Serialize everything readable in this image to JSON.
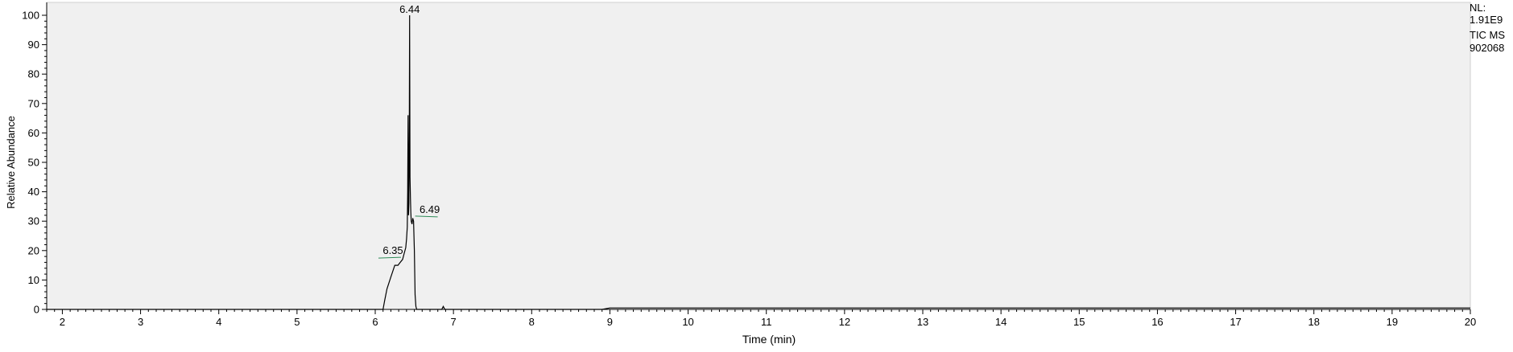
{
  "chart_data": {
    "type": "line",
    "title": "",
    "xlabel": "Time (min)",
    "ylabel": "Relative Abundance",
    "xlim": [
      1.8,
      20
    ],
    "ylim": [
      0,
      100
    ],
    "x_ticks": [
      2,
      3,
      4,
      5,
      6,
      7,
      8,
      9,
      10,
      11,
      12,
      13,
      14,
      15,
      16,
      17,
      18,
      19,
      20
    ],
    "y_ticks": [
      0,
      10,
      20,
      30,
      40,
      50,
      60,
      70,
      80,
      90,
      100
    ],
    "grid": false,
    "plot_background": "#f0f0f0",
    "line_color": "#000000",
    "peak_marker_color": "#2e8b57",
    "series": [
      {
        "x": [
          1.8,
          6.1,
          6.12,
          6.15,
          6.2,
          6.25,
          6.29,
          6.32,
          6.35,
          6.37,
          6.39,
          6.4,
          6.41,
          6.415,
          6.42,
          6.425,
          6.43,
          6.435,
          6.44,
          6.445,
          6.45,
          6.455,
          6.46,
          6.47,
          6.48,
          6.49,
          6.5,
          6.51,
          6.52,
          6.53,
          6.55,
          6.85,
          6.87,
          6.89,
          8.9,
          9.0,
          20.0
        ],
        "y": [
          0,
          0,
          3,
          7,
          11,
          15,
          15,
          16,
          17,
          19,
          21,
          24,
          28,
          40,
          66,
          32,
          36,
          60,
          100,
          45,
          38,
          33,
          30,
          29,
          31,
          30,
          20,
          5,
          1,
          0,
          0,
          0,
          1,
          0,
          0,
          0.5,
          0.5
        ]
      }
    ],
    "peak_labels": [
      {
        "x": 6.44,
        "y": 100,
        "label": "6.44"
      },
      {
        "x": 6.35,
        "y": 18,
        "label": "6.35"
      },
      {
        "x": 6.49,
        "y": 32,
        "label": "6.49"
      }
    ]
  },
  "info": {
    "nl_label": "NL:",
    "nl_value": "1.91E9",
    "trace_type": "TIC  MS",
    "file_id": "902068"
  }
}
